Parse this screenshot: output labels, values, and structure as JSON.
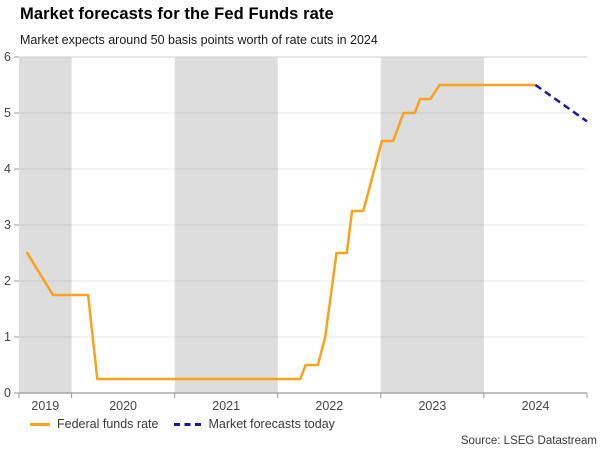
{
  "colors": {
    "federal_funds_line": "#FAA21B",
    "forecast_line": "#1A1A96",
    "year_band": "#DDDDDD",
    "plot_top_border": "#CFCFCF",
    "axis": "#999999",
    "tick_label": "#454545"
  },
  "source": "Source: LSEG Datastream",
  "chart_data": {
    "type": "line",
    "title": "Market forecasts for the Fed Funds rate",
    "subtitle": "Market expects around 50 basis points worth of rate cuts in 2024",
    "xlabel": "",
    "ylabel": "",
    "xlim": [
      2019.49,
      2025.0
    ],
    "ylim": [
      0,
      6
    ],
    "y_ticks": [
      0,
      1,
      2,
      3,
      4,
      5,
      6
    ],
    "x_year_labels": [
      "2019",
      "2020",
      "2021",
      "2022",
      "2023",
      "2024"
    ],
    "shaded_bands_years": [
      [
        2019.49,
        2020
      ],
      [
        2021,
        2022
      ],
      [
        2023,
        2024
      ]
    ],
    "grid": "horizontal",
    "legend_position": "bottom-left",
    "series": [
      {
        "name": "Federal funds rate",
        "style": "solid",
        "color": "#FAA21B",
        "points": [
          [
            2019.57,
            2.5
          ],
          [
            2019.82,
            1.75
          ],
          [
            2020.16,
            1.75
          ],
          [
            2020.25,
            0.25
          ],
          [
            2022.22,
            0.25
          ],
          [
            2022.27,
            0.5
          ],
          [
            2022.39,
            0.5
          ],
          [
            2022.46,
            1.0
          ],
          [
            2022.57,
            2.5
          ],
          [
            2022.67,
            2.5
          ],
          [
            2022.72,
            3.25
          ],
          [
            2022.83,
            3.25
          ],
          [
            2023.01,
            4.5
          ],
          [
            2023.12,
            4.5
          ],
          [
            2023.22,
            5.0
          ],
          [
            2023.33,
            5.0
          ],
          [
            2023.38,
            5.25
          ],
          [
            2023.48,
            5.25
          ],
          [
            2023.57,
            5.5
          ],
          [
            2024.5,
            5.5
          ]
        ]
      },
      {
        "name": "Market forecasts today",
        "style": "dashed",
        "color": "#1A1A96",
        "points": [
          [
            2024.5,
            5.5
          ],
          [
            2025.0,
            4.85
          ]
        ]
      }
    ]
  }
}
